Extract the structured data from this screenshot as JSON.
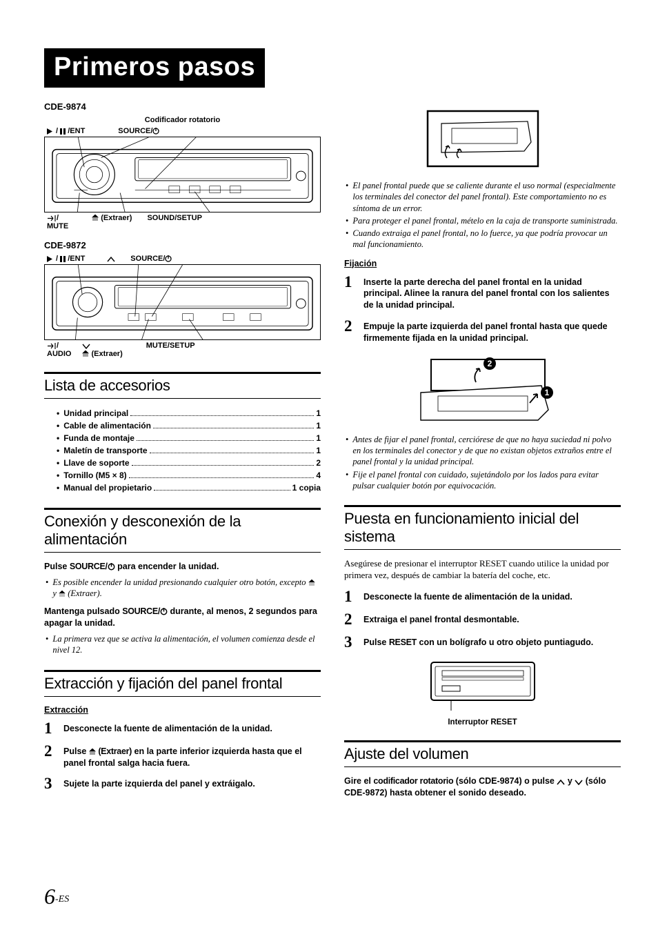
{
  "banner_title": "Primeros pasos",
  "left": {
    "model1": "CDE-9874",
    "diag1_top_center": "Codificador rotatorio",
    "diag1_top": [
      "▶ /  / ENT",
      "SOURCE/"
    ],
    "diag1_bot": [
      "/ MUTE",
      "(Extraer)",
      "SOUND/SETUP"
    ],
    "model2": "CDE-9872",
    "diag2_top": [
      "▶ /  / ENT",
      "",
      "SOURCE/"
    ],
    "diag2_bot": [
      "/ AUDIO",
      "(Extraer)",
      "MUTE/SETUP"
    ],
    "sec1_title": "Lista de accesorios",
    "accessories": [
      {
        "label": "Unidad principal",
        "qty": "1"
      },
      {
        "label": "Cable de alimentación",
        "qty": "1"
      },
      {
        "label": "Funda de montaje",
        "qty": "1"
      },
      {
        "label": "Maletín de transporte",
        "qty": "1"
      },
      {
        "label": "Llave de soporte",
        "qty": "2"
      },
      {
        "label": "Tornillo (M5 × 8)",
        "qty": "4"
      },
      {
        "label": "Manual del propietario",
        "qty": "1 copia"
      }
    ],
    "sec2_title": "Conexión y desconexión de la alimentación",
    "sec2_b1_pre": "Pulse ",
    "sec2_b1_heavy": "SOURCE/",
    "sec2_b1_post": " para encender la unidad.",
    "sec2_note1": "Es posible encender la unidad presionando cualquier otro botón, excepto  y  (Extraer).",
    "sec2_b2_pre": "Mantenga pulsado ",
    "sec2_b2_heavy": "SOURCE/",
    "sec2_b2_post": " durante, al menos, 2 segundos para apagar la unidad.",
    "sec2_note2": "La primera vez que se activa la alimentación, el volumen comienza desde el nivel 12.",
    "sec3_title": "Extracción y fijación del panel frontal",
    "sec3_sub": "Extracción",
    "sec3_steps": [
      "Desconecte la fuente de alimentación de la unidad.",
      "Pulse  (Extraer) en la parte inferior izquierda hasta que el panel frontal salga hacia fuera.",
      "Sujete la parte izquierda del panel y extráigalo."
    ]
  },
  "right": {
    "notes1": [
      "El panel frontal puede que se caliente durante el uso normal (especialmente los terminales del conector del panel frontal). Este comportamiento no es síntoma de un error.",
      "Para proteger el panel frontal, mételo en la caja de transporte suministrada.",
      "Cuando extraiga el panel frontal, no lo fuerce, ya que podría provocar un mal funcionamiento."
    ],
    "fij_sub": "Fijación",
    "fij_steps": [
      "Inserte la parte derecha del panel frontal en la unidad principal. Alinee la ranura del panel frontal con los salientes de la unidad principal.",
      "Empuje la parte izquierda del panel frontal hasta que quede firmemente fijada en la unidad principal."
    ],
    "notes2": [
      "Antes de fijar el panel frontal, cerciórese de que no haya suciedad ni polvo en los terminales del conector y de que no existan objetos extraños entre el panel frontal y la unidad principal.",
      "Fije el panel frontal con cuidado, sujetándolo por los lados para evitar pulsar cualquier botón por equivocación."
    ],
    "sec4_title": "Puesta en funcionamiento inicial del sistema",
    "sec4_body": "Asegúrese de presionar el interruptor RESET cuando utilice la unidad por primera vez, después de cambiar la batería del coche, etc.",
    "sec4_steps": [
      "Desconecte la fuente de alimentación de la unidad.",
      "Extraiga el panel frontal desmontable.",
      "Pulse RESET con un bolígrafo u otro objeto puntiagudo."
    ],
    "reset_caption": "Interruptor RESET",
    "sec5_title": "Ajuste del volumen",
    "sec5_pre": "Gire el ",
    "sec5_heavy": "codificador rotatorio",
    "sec5_post": " (sólo CDE-9874) o pulse  y  (sólo CDE-9872) hasta obtener el sonido deseado."
  },
  "page_number": "6",
  "page_suffix": "-ES"
}
